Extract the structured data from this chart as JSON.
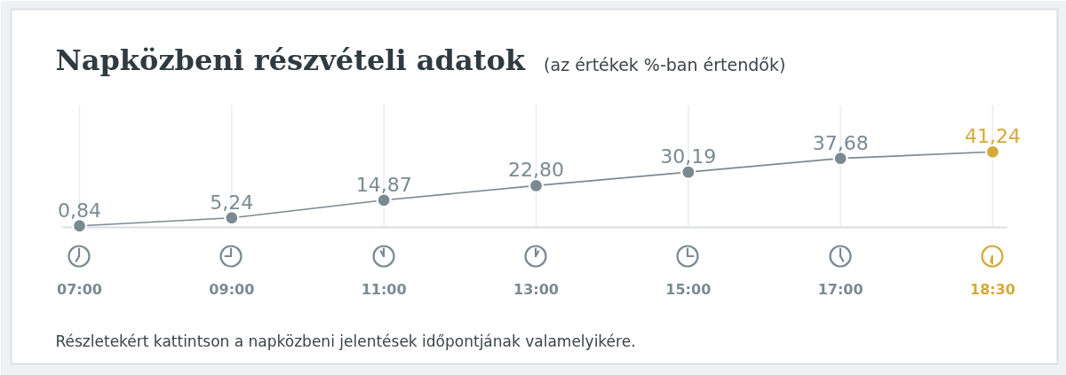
{
  "chart_data": {
    "type": "line",
    "title": "Napközbeni részvételi adatok",
    "subtitle": "(az értékek %-ban értendők)",
    "categories": [
      "07:00",
      "09:00",
      "11:00",
      "13:00",
      "15:00",
      "17:00",
      "18:30"
    ],
    "values": [
      0.84,
      5.24,
      14.87,
      22.8,
      30.19,
      37.68,
      41.24
    ],
    "value_labels": [
      "0,84",
      "5,24",
      "14,87",
      "22,80",
      "30,19",
      "37,68",
      "41,24"
    ],
    "color": "#7b8a91",
    "colors": [
      "#7b8a91",
      "#7b8a91",
      "#7b8a91",
      "#7b8a91",
      "#7b8a91",
      "#7b8a91",
      "#d4aa3c"
    ],
    "marker": "circle",
    "line_style": "solid",
    "grid": "x",
    "annotations": [
      "Részletekért kattintson a napközbeni jelentések időpontjának valamelyikére."
    ]
  }
}
